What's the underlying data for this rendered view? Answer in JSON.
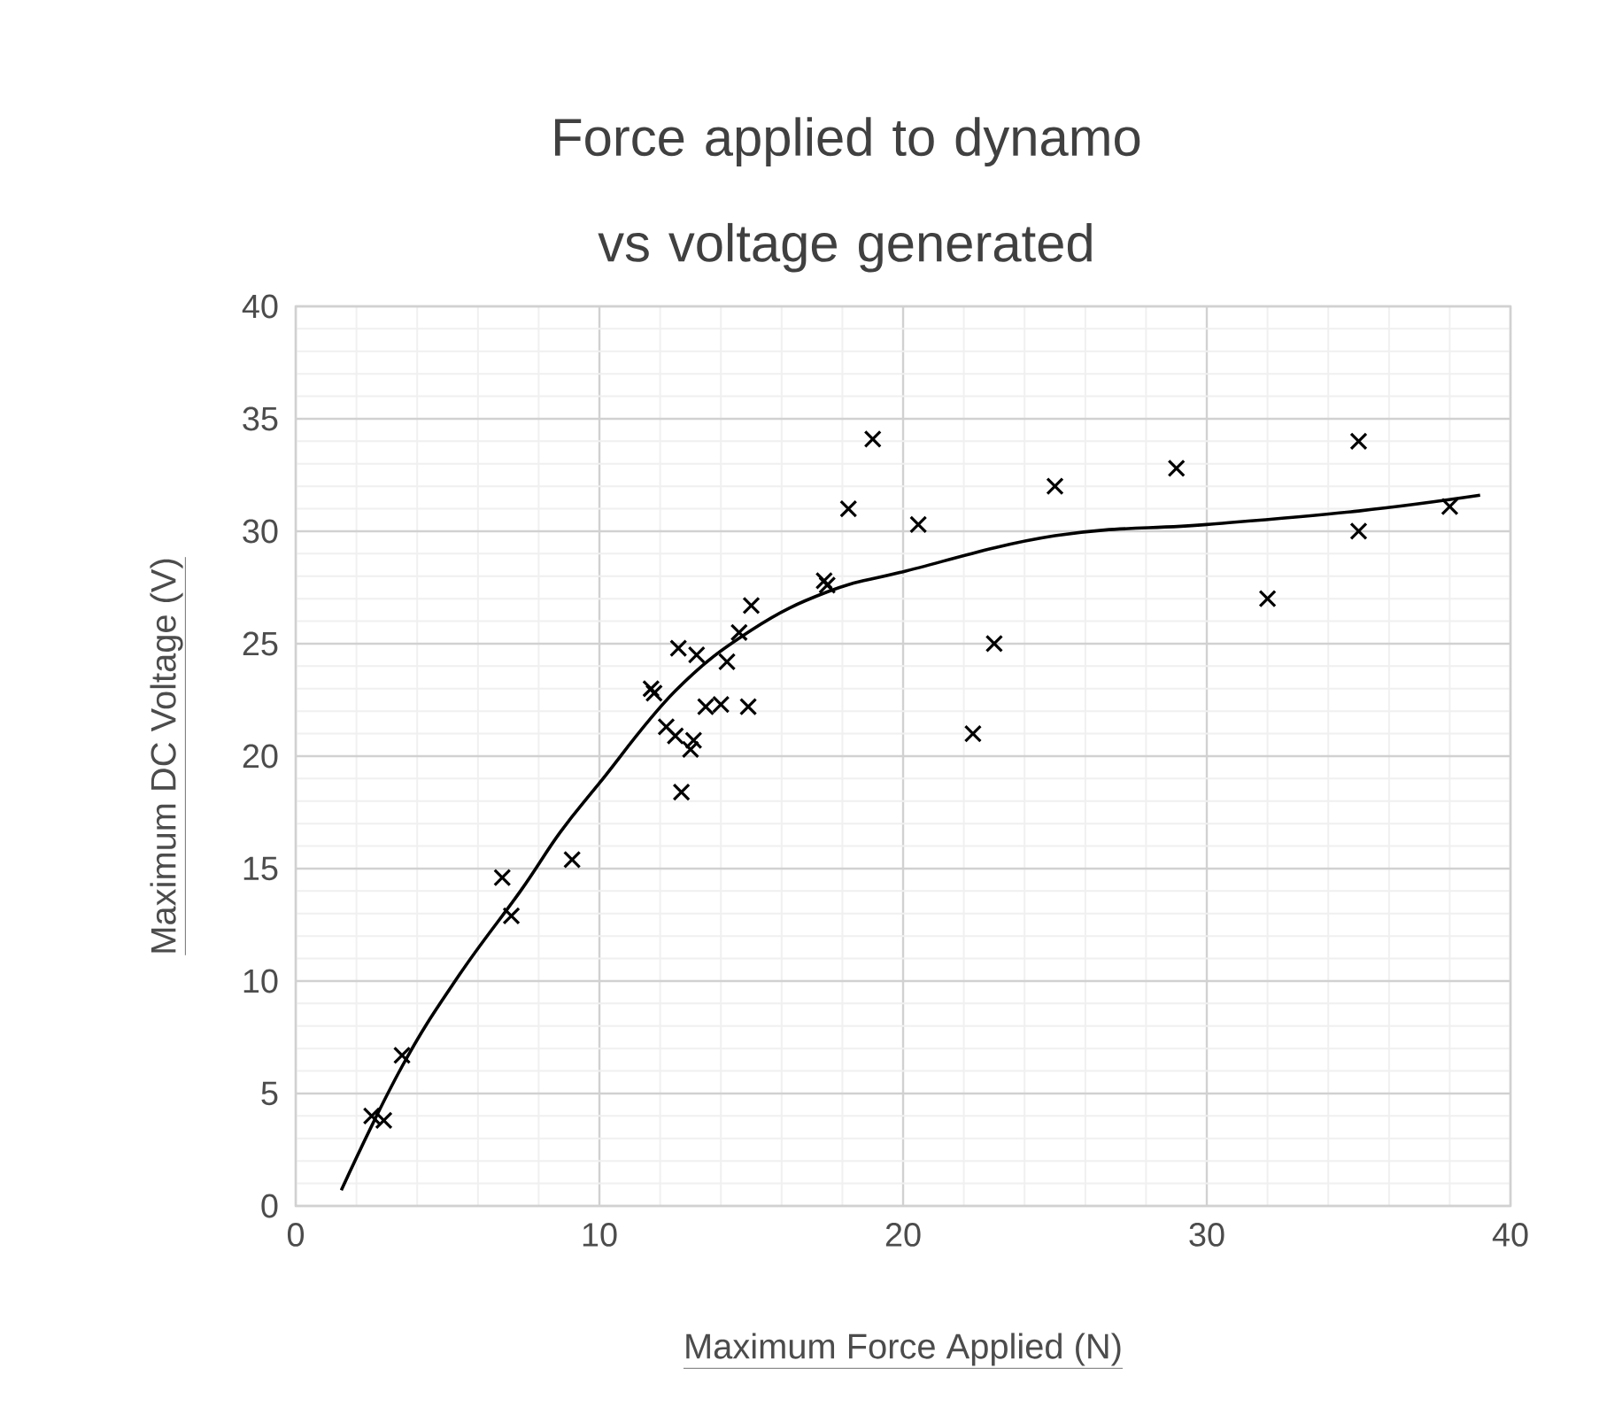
{
  "chart_data": {
    "type": "scatter",
    "title": "Force applied to dynamo vs voltage generated",
    "xlabel": "Maximum Force Applied (N)",
    "ylabel": "Maximum DC Voltage (V)",
    "xlim": [
      0,
      40
    ],
    "ylim": [
      0,
      40
    ],
    "xticks": [
      0,
      10,
      20,
      30,
      40
    ],
    "yticks": [
      0,
      5,
      10,
      15,
      20,
      25,
      30,
      35,
      40
    ],
    "grid": true,
    "marker": "cross",
    "series": [
      {
        "color": "#000000",
        "x": [
          2.5,
          2.9,
          3.5,
          6.8,
          7.1,
          9.1,
          11.7,
          11.8,
          12.2,
          12.5,
          12.6,
          12.7,
          13.0,
          13.1,
          13.2,
          13.5,
          14.0,
          14.2,
          14.6,
          15.0,
          14.9,
          17.4,
          17.5,
          18.2,
          19.0,
          20.5,
          22.3,
          23.0,
          25.0,
          29.0,
          32.0,
          35.0,
          35.0,
          38.0
        ],
        "values": [
          4.0,
          3.8,
          6.7,
          14.6,
          12.9,
          15.4,
          23.0,
          22.8,
          21.3,
          20.9,
          24.8,
          18.4,
          20.3,
          20.7,
          24.5,
          22.2,
          22.3,
          24.2,
          25.5,
          26.7,
          22.2,
          27.8,
          27.6,
          31.0,
          34.1,
          30.3,
          21.0,
          25.0,
          32.0,
          32.8,
          27.0,
          34.0,
          30.0,
          31.1
        ]
      },
      {
        "type": "line",
        "color": "#000000",
        "marker": "none",
        "line_style": "solid",
        "x": [
          1.5,
          3.5,
          5.4,
          7.4,
          8.7,
          10,
          12.5,
          15,
          17.5,
          20,
          25,
          30,
          35,
          39
        ],
        "values": [
          0.7,
          6.2,
          10.3,
          14.0,
          16.6,
          18.8,
          22.9,
          25.6,
          27.3,
          28.2,
          29.8,
          30.3,
          30.9,
          31.6
        ]
      }
    ]
  }
}
